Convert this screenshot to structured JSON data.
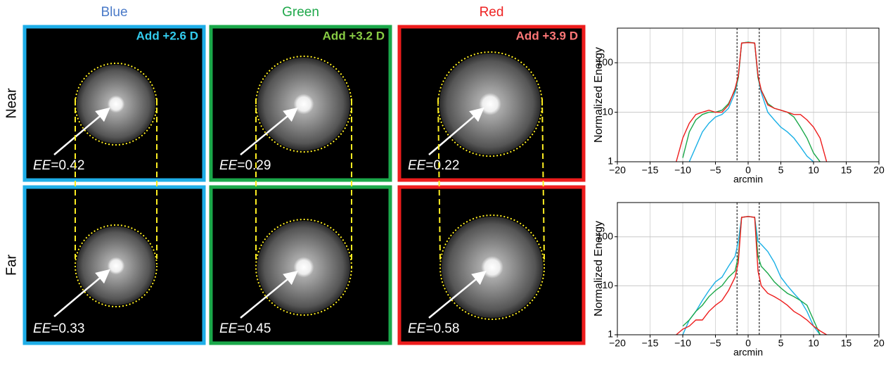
{
  "panels": {
    "columns": [
      {
        "title": "Blue",
        "add": "Add +2.6 D"
      },
      {
        "title": "Green",
        "add": "Add +3.2 D"
      },
      {
        "title": "Red",
        "add": "Add +3.9 D"
      }
    ],
    "rows": [
      "Near",
      "Far"
    ],
    "ee_symbol": "EE",
    "ee": [
      [
        "=0.42",
        "=0.29",
        "=0.22"
      ],
      [
        "=0.33",
        "=0.45",
        "=0.58"
      ]
    ]
  },
  "chart_data": [
    {
      "type": "line",
      "log": true,
      "grid": true,
      "xlabel": "arcmin",
      "ylabel": "Normalized Energy",
      "xlim": [
        -20,
        20
      ],
      "ylim": [
        1,
        500
      ],
      "xticks": [
        {
          "value": -20,
          "label": "−20"
        },
        {
          "value": -15,
          "label": "−15"
        },
        {
          "value": -10,
          "label": "−10"
        },
        {
          "value": -5,
          "label": "−5"
        },
        0,
        5,
        10,
        15,
        20
      ],
      "yticks": [
        1,
        10,
        100
      ],
      "vlines": [
        -1.7,
        1.7
      ],
      "x": [
        -12,
        -11,
        -10,
        -9,
        -8,
        -7,
        -6,
        -5,
        -4,
        -3,
        -2,
        -1.5,
        -1,
        0,
        1,
        1.5,
        2,
        3,
        4,
        5,
        6,
        7,
        8,
        9,
        10,
        11,
        12
      ],
      "series": [
        {
          "name": "Blue",
          "color": "#1ab0e6",
          "values": [
            null,
            null,
            null,
            1,
            2,
            4,
            6,
            8,
            9,
            12,
            25,
            50,
            250,
            260,
            250,
            50,
            25,
            10,
            7,
            5,
            4,
            3,
            2,
            1.3,
            1,
            null,
            null
          ]
        },
        {
          "name": "Green",
          "color": "#1aa84a",
          "values": [
            null,
            null,
            1.2,
            4,
            7,
            9,
            10,
            10,
            11,
            15,
            28,
            50,
            250,
            260,
            250,
            50,
            28,
            15,
            12,
            11,
            10,
            8,
            5,
            3,
            1.5,
            1,
            null
          ]
        },
        {
          "name": "Red",
          "color": "#ee1c1c",
          "values": [
            null,
            1,
            3,
            6,
            9,
            10,
            11,
            10,
            10,
            14,
            30,
            55,
            250,
            255,
            250,
            55,
            28,
            14,
            12,
            11,
            10,
            9,
            9,
            7,
            5,
            3,
            1
          ]
        }
      ]
    },
    {
      "type": "line",
      "log": true,
      "grid": true,
      "xlabel": "arcmin",
      "ylabel": "Normalized Energy",
      "xlim": [
        -20,
        20
      ],
      "ylim": [
        1,
        500
      ],
      "xticks": [
        {
          "value": -20,
          "label": "−20"
        },
        {
          "value": -15,
          "label": "−15"
        },
        {
          "value": -10,
          "label": "−10"
        },
        {
          "value": -5,
          "label": "−5"
        },
        0,
        5,
        10,
        15,
        20
      ],
      "yticks": [
        1,
        10,
        100
      ],
      "vlines": [
        -1.7,
        1.7
      ],
      "x": [
        -12,
        -11,
        -10,
        -9,
        -8,
        -7,
        -6,
        -5,
        -4,
        -3,
        -2,
        -1.5,
        -1,
        0,
        1,
        1.5,
        2,
        3,
        4,
        5,
        6,
        7,
        8,
        9,
        10,
        11,
        12
      ],
      "series": [
        {
          "name": "Blue",
          "color": "#1ab0e6",
          "values": [
            null,
            null,
            1,
            2,
            3,
            5,
            8,
            12,
            15,
            25,
            40,
            80,
            250,
            260,
            250,
            80,
            70,
            50,
            30,
            15,
            10,
            7,
            5,
            3,
            1.5,
            1,
            null
          ]
        },
        {
          "name": "Green",
          "color": "#1aa84a",
          "values": [
            null,
            null,
            1.5,
            2,
            3,
            4,
            6,
            8,
            10,
            15,
            20,
            40,
            250,
            260,
            250,
            40,
            25,
            18,
            12,
            9,
            7,
            6,
            5,
            4,
            2,
            1,
            null
          ]
        },
        {
          "name": "Red",
          "color": "#ee1c1c",
          "values": [
            null,
            1,
            1.3,
            1.5,
            2,
            2,
            3,
            4,
            5,
            8,
            15,
            30,
            250,
            260,
            250,
            20,
            10,
            7,
            6,
            5,
            4,
            3,
            2.5,
            2,
            1.5,
            1.2,
            1
          ]
        }
      ]
    }
  ]
}
